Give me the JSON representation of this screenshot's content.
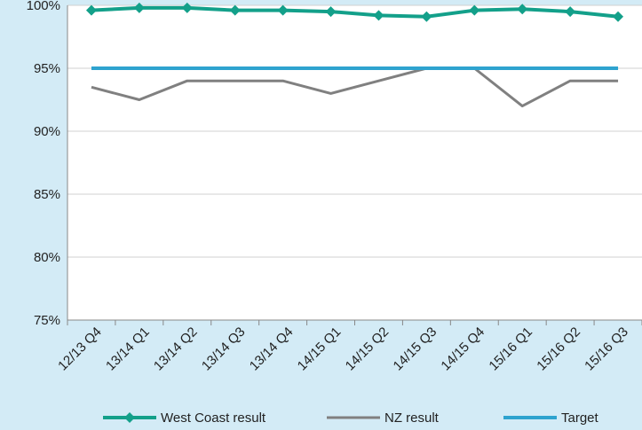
{
  "chart_data": {
    "type": "line",
    "categories": [
      "12/13 Q4",
      "13/14 Q1",
      "13/14 Q2",
      "13/14 Q3",
      "13/14 Q4",
      "14/15 Q1",
      "14/15 Q2",
      "14/15 Q3",
      "14/15 Q4",
      "15/16 Q1",
      "15/16 Q2",
      "15/16 Q3"
    ],
    "series": [
      {
        "name": "West Coast result",
        "color": "#13a08a",
        "marker": "diamond",
        "values": [
          99.6,
          99.8,
          99.8,
          99.6,
          99.6,
          99.5,
          99.2,
          99.1,
          99.6,
          99.7,
          99.5,
          99.1
        ]
      },
      {
        "name": "NZ result",
        "color": "#808080",
        "marker": "none",
        "values": [
          93.5,
          92.5,
          94,
          94,
          94,
          93,
          94,
          95,
          95,
          92,
          94,
          94
        ]
      },
      {
        "name": "Target",
        "color": "#2ea3cf",
        "marker": "none",
        "values": [
          95,
          95,
          95,
          95,
          95,
          95,
          95,
          95,
          95,
          95,
          95,
          95
        ]
      }
    ],
    "ylim": [
      75,
      100
    ],
    "yticks": [
      75,
      80,
      85,
      90,
      95,
      100
    ],
    "ytick_labels": [
      "75%",
      "80%",
      "85%",
      "90%",
      "95%",
      "100%"
    ],
    "grid": "horizontal",
    "legend": "bottom",
    "background": "#d3ebf6",
    "plot_background": "#ffffff"
  }
}
